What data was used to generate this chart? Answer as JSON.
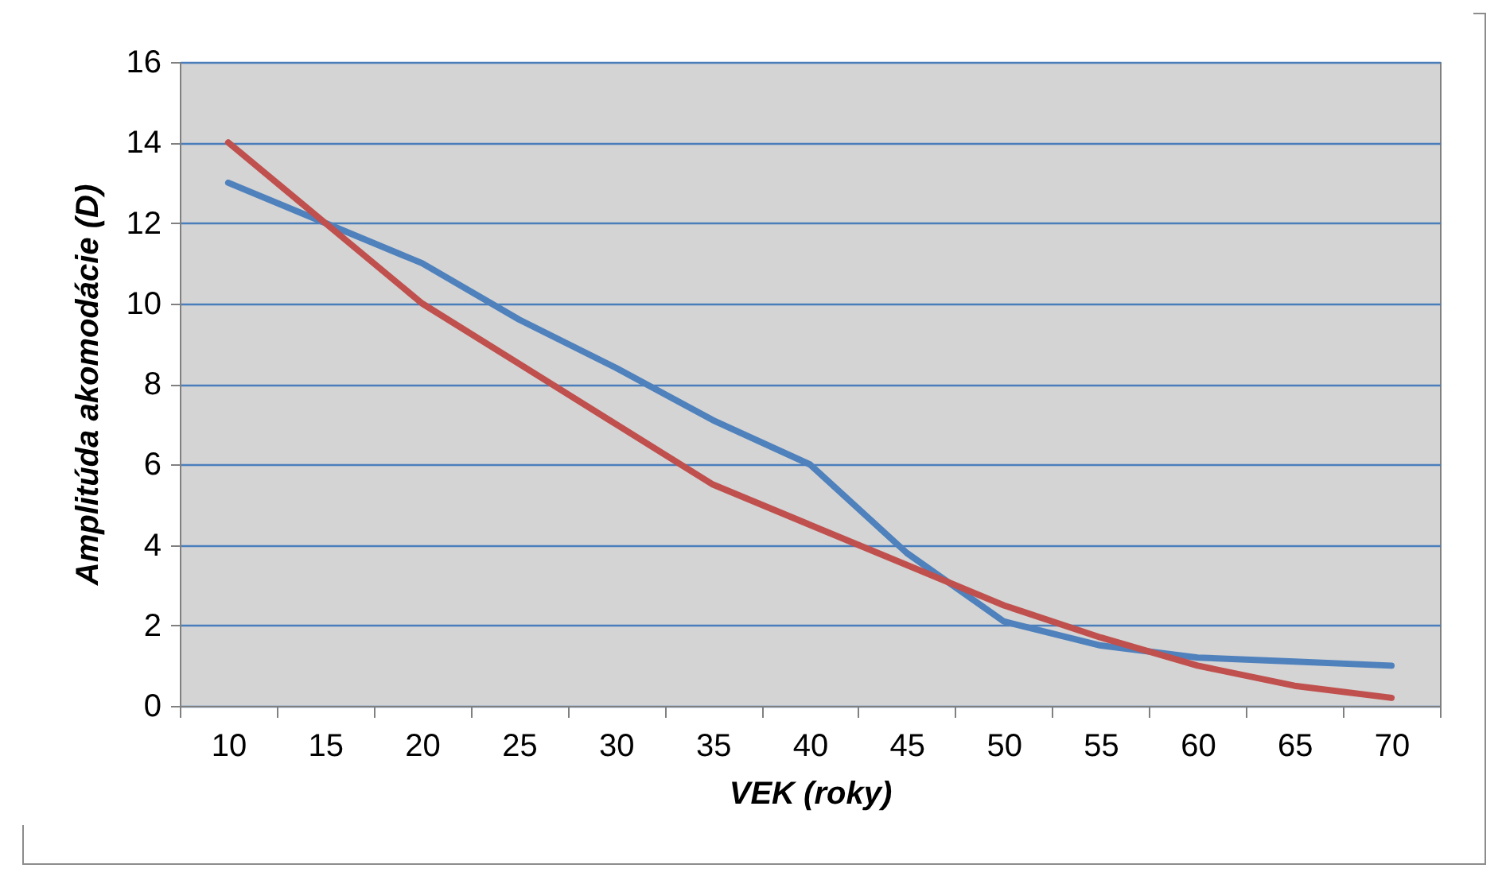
{
  "chart_data": {
    "type": "line",
    "xlabel": "VEK (roky)",
    "ylabel": "Amplitúda akomodácie (D)",
    "categories": [
      "10",
      "15",
      "20",
      "25",
      "30",
      "35",
      "40",
      "45",
      "50",
      "55",
      "60",
      "65",
      "70"
    ],
    "series": [
      {
        "color": "#4f81bd",
        "values": [
          13,
          12,
          11,
          9.6,
          8.4,
          7.1,
          6,
          3.8,
          2.1,
          1.5,
          1.2,
          1.1,
          1.0
        ]
      },
      {
        "color": "#c0504d",
        "values": [
          14,
          12,
          10,
          8.5,
          7,
          5.5,
          4.5,
          3.5,
          2.5,
          1.7,
          1.0,
          0.5,
          0.2
        ]
      }
    ],
    "ylim": [
      0,
      16
    ],
    "yticks": [
      0,
      2,
      4,
      6,
      8,
      10,
      12,
      14,
      16
    ],
    "grid": "y",
    "legend": false,
    "marker": "none",
    "line_style": "solid"
  }
}
